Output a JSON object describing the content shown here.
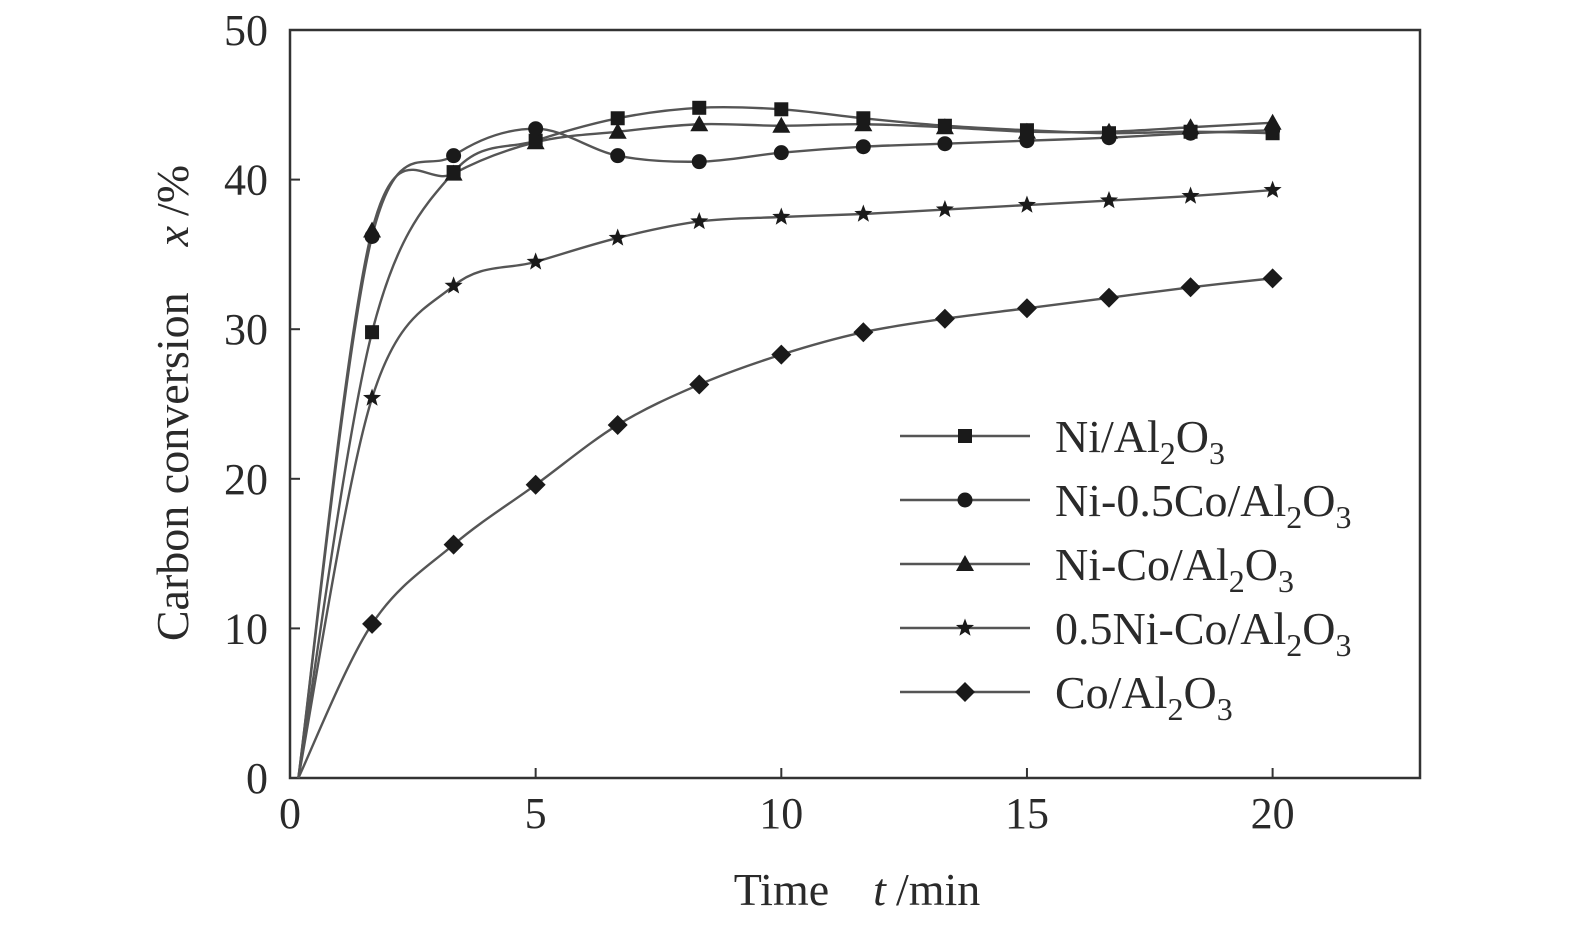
{
  "chart_data": {
    "type": "line",
    "title": "",
    "xlabel": "Time",
    "xlabel_var": "t",
    "xlabel_unit": "/min",
    "ylabel": "Carbon conversion",
    "ylabel_var": "x",
    "ylabel_unit": "/%",
    "xlim": [
      0,
      23
    ],
    "ylim": [
      0,
      50
    ],
    "xticks": [
      0,
      5,
      10,
      15,
      20
    ],
    "yticks": [
      0,
      10,
      20,
      30,
      40,
      50
    ],
    "grid": false,
    "legend_position": "bottom-right",
    "line_color": "#555555",
    "marker_color": "#1a1a1a",
    "series": [
      {
        "name": "Ni/Al2O3",
        "label_parts": [
          [
            "Ni/Al",
            false
          ],
          [
            "2",
            true
          ],
          [
            "O",
            false
          ],
          [
            "3",
            true
          ]
        ],
        "marker": "square",
        "x": [
          0.17,
          1.67,
          3.33,
          5.0,
          6.67,
          8.33,
          10.0,
          11.67,
          13.33,
          15.0,
          16.67,
          18.33,
          20.0
        ],
        "y": [
          0,
          29.8,
          40.5,
          42.6,
          44.1,
          44.8,
          44.7,
          44.1,
          43.6,
          43.3,
          43.1,
          43.2,
          43.1
        ]
      },
      {
        "name": "Ni-0.5Co/Al2O3",
        "label_parts": [
          [
            "Ni-0.5Co/Al",
            false
          ],
          [
            "2",
            true
          ],
          [
            "O",
            false
          ],
          [
            "3",
            true
          ]
        ],
        "marker": "circle",
        "x": [
          0.17,
          1.67,
          3.33,
          5.0,
          6.67,
          8.33,
          10.0,
          11.67,
          13.33,
          15.0,
          16.67,
          18.33,
          20.0
        ],
        "y": [
          0,
          36.2,
          41.6,
          43.4,
          41.6,
          41.2,
          41.8,
          42.2,
          42.4,
          42.6,
          42.8,
          43.1,
          43.3
        ]
      },
      {
        "name": "Ni-Co/Al2O3",
        "label_parts": [
          [
            "Ni-Co/Al",
            false
          ],
          [
            "2",
            true
          ],
          [
            "O",
            false
          ],
          [
            "3",
            true
          ]
        ],
        "marker": "triangle",
        "x": [
          0.17,
          1.67,
          3.33,
          5.0,
          6.67,
          8.33,
          10.0,
          11.67,
          13.33,
          15.0,
          16.67,
          18.33,
          20.0
        ],
        "y": [
          0,
          36.6,
          40.4,
          42.5,
          43.2,
          43.7,
          43.6,
          43.7,
          43.5,
          43.2,
          43.2,
          43.5,
          43.8
        ]
      },
      {
        "name": "0.5Ni-Co/Al2O3",
        "label_parts": [
          [
            "0.5Ni-Co/Al",
            false
          ],
          [
            "2",
            true
          ],
          [
            "O",
            false
          ],
          [
            "3",
            true
          ]
        ],
        "marker": "star",
        "x": [
          0.17,
          1.67,
          3.33,
          5.0,
          6.67,
          8.33,
          10.0,
          11.67,
          13.33,
          15.0,
          16.67,
          18.33,
          20.0
        ],
        "y": [
          0,
          25.4,
          32.9,
          34.5,
          36.1,
          37.2,
          37.5,
          37.7,
          38.0,
          38.3,
          38.6,
          38.9,
          39.3
        ]
      },
      {
        "name": "Co/Al2O3",
        "label_parts": [
          [
            "Co/Al",
            false
          ],
          [
            "2",
            true
          ],
          [
            "O",
            false
          ],
          [
            "3",
            true
          ]
        ],
        "marker": "diamond",
        "x": [
          0.17,
          1.67,
          3.33,
          5.0,
          6.67,
          8.33,
          10.0,
          11.67,
          13.33,
          15.0,
          16.67,
          18.33,
          20.0
        ],
        "y": [
          0,
          10.3,
          15.6,
          19.6,
          23.6,
          26.3,
          28.3,
          29.8,
          30.7,
          31.4,
          32.1,
          32.8,
          33.4
        ]
      }
    ]
  }
}
